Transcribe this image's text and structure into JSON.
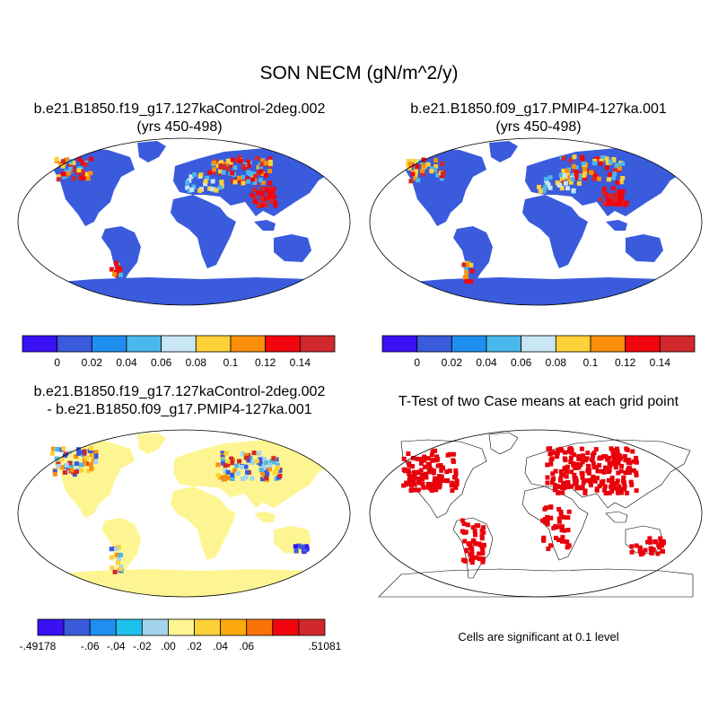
{
  "title": "SON NECM (gN/m^2/y)",
  "panels": [
    {
      "id": "case1",
      "title_line1": "b.e21.B1850.f19_g17.127kaControl-2deg.002",
      "title_line2": "(yrs 450-498)"
    },
    {
      "id": "case2",
      "title_line1": "b.e21.B1850.f09_g17.PMIP4-127ka.001",
      "title_line2": "(yrs 450-498)"
    },
    {
      "id": "diff",
      "title_line1": "b.e21.B1850.f19_g17.127kaControl-2deg.002",
      "title_line2": "- b.e21.B1850.f09_g17.PMIP4-127ka.001"
    },
    {
      "id": "ttest",
      "title_line1": "T-Test of two Case means at each grid point",
      "title_line2": ""
    }
  ],
  "ttest_note": "Cells are significant at 0.1 level",
  "colorbar_main": {
    "colors": [
      "#3a10f5",
      "#3a5bdc",
      "#1f8ef0",
      "#4ab8ec",
      "#c8e6f4",
      "#fdd138",
      "#fb8f0c",
      "#f2050e",
      "#d0282c"
    ],
    "labels": [
      "0",
      "0.02",
      "0.04",
      "0.06",
      "0.08",
      "0.1",
      "0.12",
      "0.14"
    ]
  },
  "colorbar_diff": {
    "colors": [
      "#3a10f5",
      "#3a5bdc",
      "#1f8ef0",
      "#1ec0ec",
      "#a2d4ee",
      "#fdf592",
      "#fdd138",
      "#fba90c",
      "#fb7207",
      "#f2050e",
      "#d0282c"
    ],
    "labels": [
      "-.49178",
      "-.06",
      "-.04",
      "-.02",
      ".00",
      ".02",
      ".04",
      ".06",
      ".51081"
    ]
  },
  "ttest_color": "#e8000a",
  "land_color_main": "#3a5bdc",
  "land_color_diff": "#fdf592"
}
